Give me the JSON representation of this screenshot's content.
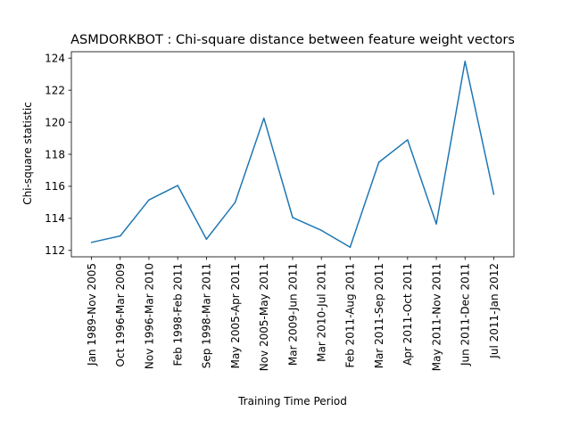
{
  "chart_data": {
    "type": "line",
    "title": "ASMDORKBOT : Chi-square distance between feature weight vectors",
    "xlabel": "Training Time Period",
    "ylabel": "Chi-square statistic",
    "categories": [
      "Jan 1989-Nov 2005",
      "Oct 1996-Mar 2009",
      "Nov 1996-Mar 2010",
      "Feb 1998-Feb 2011",
      "Sep 1998-Mar 2011",
      "May 2005-Apr 2011",
      "Nov 2005-May 2011",
      "Mar 2009-Jun 2011",
      "Mar 2010-Jul 2011",
      "Feb 2011-Aug 2011",
      "Mar 2011-Sep 2011",
      "Apr 2011-Oct 2011",
      "May 2011-Nov 2011",
      "Jun 2011-Dec 2011",
      "Jul 2011-Jan 2012"
    ],
    "series": [
      {
        "values": [
          112.5,
          112.9,
          115.15,
          116.05,
          112.7,
          115.0,
          120.25,
          114.05,
          113.25,
          112.2,
          117.5,
          118.9,
          113.65,
          123.8,
          115.5
        ]
      }
    ],
    "yticks": [
      "112",
      "114",
      "116",
      "118",
      "120",
      "122",
      "124"
    ],
    "ylim": [
      111.6,
      124.4
    ],
    "grid": false,
    "line_color": "#1f77b4"
  }
}
